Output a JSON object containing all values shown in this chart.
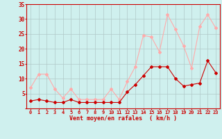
{
  "hours": [
    0,
    1,
    2,
    3,
    4,
    5,
    6,
    7,
    8,
    9,
    10,
    11,
    12,
    13,
    14,
    15,
    16,
    17,
    18,
    19,
    20,
    21,
    22,
    23
  ],
  "wind_avg": [
    2.5,
    3,
    2.5,
    2,
    2,
    3,
    2,
    2,
    2,
    2,
    2,
    2,
    5.5,
    8,
    11,
    14,
    14,
    14,
    10,
    7.5,
    8,
    8.5,
    16,
    12
  ],
  "wind_gust": [
    7,
    11.5,
    11.5,
    6.5,
    3.5,
    6.5,
    3,
    3,
    3,
    3,
    6.5,
    3,
    9,
    14,
    24.5,
    24,
    19,
    31.5,
    26.5,
    21,
    13.5,
    27.5,
    31.5,
    27
  ],
  "color_avg": "#cc0000",
  "color_gust": "#ffaaaa",
  "background": "#cff0ee",
  "grid_color": "#b0c8c8",
  "xlabel": "Vent moyen/en rafales  ( km/h )",
  "ylim": [
    0,
    35
  ],
  "yticks": [
    0,
    5,
    10,
    15,
    20,
    25,
    30,
    35
  ],
  "xlim_min": -0.5,
  "xlim_max": 23.5,
  "xticks": [
    0,
    1,
    2,
    3,
    4,
    5,
    6,
    7,
    8,
    9,
    10,
    11,
    12,
    13,
    14,
    15,
    16,
    17,
    18,
    19,
    20,
    21,
    22,
    23
  ]
}
